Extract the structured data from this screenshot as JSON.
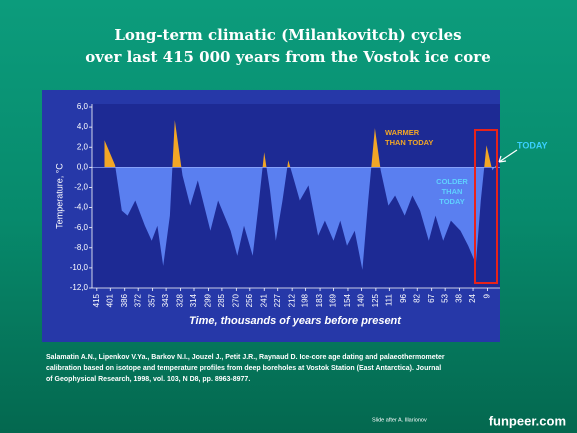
{
  "chart_data": {
    "type": "area",
    "title": [
      "Long-term climatic (Milankovitch) cycles",
      "over last 415 000 years from the Vostok ice core"
    ],
    "ylabel": "Temperature, °C",
    "xlabel": "Time, thousands of years before present",
    "x": [
      407,
      396,
      389,
      383,
      375,
      365,
      358,
      352,
      346,
      339,
      334,
      326,
      318,
      310,
      297,
      289,
      276,
      269,
      262,
      253,
      247,
      241,
      235,
      229,
      222,
      216,
      210,
      204,
      195,
      185,
      178,
      169,
      162,
      155,
      147,
      139,
      133,
      126,
      120,
      112,
      105,
      95,
      87,
      79,
      70,
      63,
      55,
      47,
      37,
      29,
      21,
      16,
      10,
      4,
      0
    ],
    "values": [
      2.7,
      0.2,
      -4.3,
      -4.8,
      -3.3,
      -5.8,
      -7.3,
      -5.8,
      -9.8,
      -4.8,
      4.7,
      -0.8,
      -3.8,
      -1.3,
      -6.3,
      -3.3,
      -6.3,
      -8.8,
      -5.8,
      -8.8,
      -3.8,
      1.5,
      -2.3,
      -7.3,
      -3.3,
      0.7,
      -1.3,
      -3.3,
      -1.8,
      -6.8,
      -5.3,
      -7.3,
      -5.3,
      -7.8,
      -6.3,
      -10.2,
      -3.3,
      3.9,
      -0.3,
      -3.8,
      -2.8,
      -4.8,
      -2.8,
      -4.3,
      -7.3,
      -4.8,
      -7.3,
      -5.3,
      -6.3,
      -7.8,
      -9.6,
      -3.3,
      2.2,
      -0.3,
      0.2
    ],
    "xlim": [
      420,
      -4
    ],
    "xticks": [
      415,
      401,
      386,
      372,
      357,
      343,
      328,
      314,
      299,
      285,
      270,
      256,
      241,
      227,
      212,
      198,
      183,
      169,
      154,
      140,
      125,
      111,
      96,
      82,
      67,
      53,
      38,
      24,
      9
    ],
    "ylim": [
      -12,
      6.3
    ],
    "yticks": [
      {
        "value": 6,
        "label": "6,0"
      },
      {
        "value": 4,
        "label": "4,0"
      },
      {
        "value": 2,
        "label": "2,0"
      },
      {
        "value": 0,
        "label": "0,0"
      },
      {
        "value": -2,
        "label": "-2,0"
      },
      {
        "value": -4,
        "label": "-4,0"
      },
      {
        "value": -6,
        "label": "-6,0"
      },
      {
        "value": -8,
        "label": "-8,0"
      },
      {
        "value": -10,
        "label": "-10,0"
      },
      {
        "value": -12,
        "label": "-12,0"
      }
    ],
    "warm_color": "#f2a626",
    "cold_color": "#5a7ff0",
    "annotations": {
      "warmer": [
        "WARMER",
        "THAN TODAY"
      ],
      "colder": [
        "COLDER",
        "THAN",
        "TODAY"
      ],
      "today": "TODAY"
    },
    "citation": [
      "Salamatin A.N., Lipenkov V.Ya., Barkov N.I., Jouzel J., Petit J.R., Raynaud D. Ice-core age dating and palaeothermometer",
      "calibration based on isotope and temperature profiles from deep boreholes at Vostok  Station (East Antarctica). Journal",
      "of Geophysical Research, 1998, vol. 103, N D8, pp. 8963-8977."
    ],
    "credit": "Slide after A. Illarionov",
    "watermark": "funpeer.com"
  }
}
